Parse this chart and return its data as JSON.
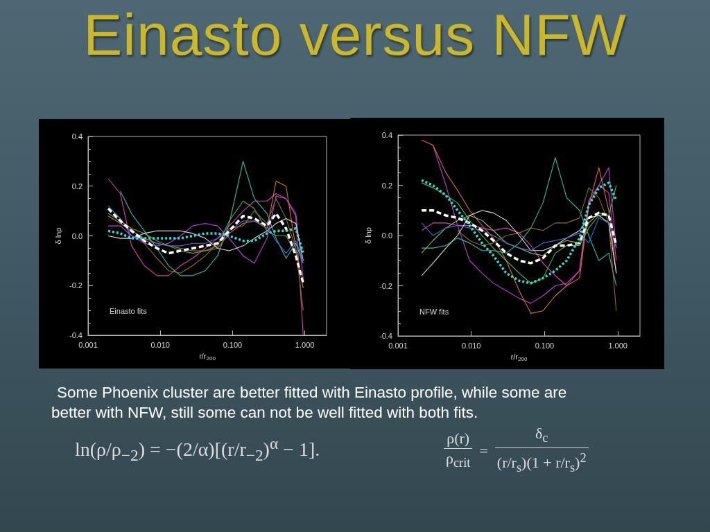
{
  "chart_data": [
    {
      "type": "line",
      "title": "Einasto versus NFW",
      "xlabel": "r/r$_{200}$",
      "ylabel": "δ lnρ",
      "annotations": [
        "Einasto fits",
        "Some Phoenix cluster are better fitted with Einasto profile, while some are better with NFW, still some can not be well fitted with both fits.",
        "ln(ρ/ρ$_{−2}$) = −(2/α)[(r/r$_{−2}$)$^{α}$ − 1]."
      ],
      "log": "x",
      "xlim": [
        0.001,
        2
      ],
      "xticks": [
        0.001,
        {
          "value": 0.01,
          "label": "0.010"
        },
        {
          "value": 0.1,
          "label": "0.100"
        },
        {
          "value": 1,
          "label": "1.000"
        }
      ],
      "ylim": [
        -0.4,
        0.4
      ],
      "yticks": [
        -0.4,
        -0.2,
        {
          "value": 0,
          "label": "0.0"
        },
        0.2,
        0.4
      ],
      "line_style": "solid",
      "x": [
        0.0019,
        0.0028,
        0.004,
        0.006,
        0.009,
        0.013,
        0.019,
        0.028,
        0.042,
        0.062,
        0.09,
        0.14,
        0.2,
        0.3,
        0.4,
        0.55,
        0.75,
        0.95
      ],
      "series": [
        {
          "color": "#e040b0",
          "values": [
            0.23,
            0.17,
            -0.04,
            -0.12,
            -0.16,
            -0.16,
            -0.12,
            -0.09,
            -0.05,
            -0.01,
            0.04,
            0.1,
            0.14,
            0.14,
            0.17,
            0.15,
            0.08,
            -0.4
          ]
        },
        {
          "color": "#c040e0",
          "values": [
            0.04,
            0.04,
            0.0,
            -0.03,
            -0.04,
            -0.03,
            0.0,
            0.04,
            0.05,
            0.04,
            -0.01,
            -0.08,
            -0.11,
            -0.01,
            0.16,
            0.15,
            0.09,
            -0.17
          ]
        },
        {
          "color": "#30c0b0",
          "values": [
            null,
            0.18,
            0.09,
            0.02,
            -0.05,
            -0.12,
            -0.16,
            -0.16,
            -0.14,
            -0.08,
            0.05,
            0.3,
            0.15,
            0.09,
            -0.01,
            -0.09,
            -0.03,
            -0.11
          ]
        },
        {
          "color": "#e07030",
          "values": [
            0.08,
            0.05,
            0.02,
            -0.01,
            -0.03,
            -0.04,
            -0.05,
            -0.06,
            -0.06,
            -0.05,
            0.01,
            0.05,
            0.06,
            0.03,
            0.22,
            0.2,
            -0.05,
            -0.21
          ]
        },
        {
          "color": "#50b040",
          "values": [
            0.09,
            0.06,
            0.03,
            0.01,
            -0.02,
            -0.04,
            -0.06,
            -0.07,
            -0.06,
            -0.04,
            0.06,
            0.14,
            0.11,
            0.02,
            0.0,
            0.0,
            -0.07,
            -0.05
          ]
        },
        {
          "color": "#8a7030",
          "values": [
            null,
            0.06,
            0.03,
            -0.03,
            -0.09,
            -0.14,
            -0.15,
            -0.12,
            -0.08,
            -0.03,
            0.03,
            0.04,
            0.1,
            0.05,
            0.15,
            0.07,
            -0.05,
            -0.3
          ]
        },
        {
          "color": "#e0e0e0",
          "values": [
            0.0,
            -0.01,
            -0.01,
            0.01,
            0.02,
            0.02,
            0.02,
            0.01,
            -0.01,
            -0.05,
            -0.06,
            -0.04,
            -0.01,
            0.02,
            0.05,
            0.07,
            0.05,
            -0.1
          ]
        },
        {
          "color": "#4a70e0",
          "values": [
            0.12,
            0.07,
            0.0,
            -0.02,
            -0.03,
            -0.04,
            -0.04,
            -0.03,
            -0.03,
            -0.01,
            0.02,
            0.06,
            0.06,
            0.04,
            -0.02,
            -0.07,
            -0.02,
            -0.1
          ]
        },
        {
          "color": "#ffffff",
          "line_style": "dashed",
          "values": [
            0.11,
            0.06,
            0.02,
            -0.02,
            -0.05,
            -0.07,
            -0.06,
            -0.05,
            -0.04,
            -0.03,
            0.02,
            0.08,
            0.07,
            0.04,
            0.09,
            0.03,
            -0.08,
            -0.19
          ]
        },
        {
          "color": "#30e0d0",
          "line_style": "dotted",
          "values": [
            0.02,
            0.01,
            -0.01,
            -0.01,
            -0.01,
            -0.01,
            -0.01,
            0.0,
            0.01,
            0.01,
            0.0,
            -0.02,
            -0.02,
            0.01,
            0.02,
            0.02,
            0.03,
            -0.07
          ]
        }
      ]
    },
    {
      "type": "line",
      "xlabel": "r/r$_{200}$",
      "ylabel": "δ lnρ",
      "annotations": [
        "NFW fits",
        "ρ(r)",
        "ρ$_{crit}$",
        "=",
        "δ$_{c}$",
        "(r/r$_{s}$)(1 + r/r$_{s}$)$^{2}$"
      ],
      "log": "x",
      "xlim": [
        0.001,
        2
      ],
      "xticks": [
        0.001,
        {
          "value": 0.01,
          "label": "0.010"
        },
        {
          "value": 0.1,
          "label": "0.100"
        },
        {
          "value": 1,
          "label": "1.000"
        }
      ],
      "ylim": [
        -0.4,
        0.4
      ],
      "yticks": [
        -0.4,
        -0.2,
        {
          "value": 0,
          "label": "0.0"
        },
        0.2,
        0.4
      ],
      "line_style": "solid",
      "x": [
        0.0021,
        0.003,
        0.0045,
        0.0065,
        0.0095,
        0.014,
        0.02,
        0.03,
        0.045,
        0.065,
        0.095,
        0.14,
        0.2,
        0.3,
        0.4,
        0.55,
        0.75,
        0.95
      ],
      "series": [
        {
          "color": "#c040d0",
          "values": [
            null,
            0.36,
            0.2,
            0.04,
            -0.1,
            -0.15,
            -0.19,
            -0.22,
            -0.25,
            -0.27,
            -0.24,
            -0.2,
            -0.19,
            -0.14,
            0.12,
            0.2,
            0.27,
            -0.05
          ]
        },
        {
          "color": "#e040c0",
          "values": [
            0.02,
            0.05,
            0.05,
            0.04,
            0.04,
            0.03,
            0.02,
            0.03,
            0.01,
            -0.04,
            -0.11,
            -0.16,
            -0.2,
            -0.14,
            0.14,
            0.2,
            0.17,
            -0.1
          ]
        },
        {
          "color": "#e07040",
          "values": [
            0.38,
            0.36,
            0.25,
            0.18,
            0.1,
            0.04,
            -0.01,
            -0.1,
            -0.22,
            -0.31,
            -0.3,
            -0.24,
            -0.2,
            -0.17,
            0.12,
            0.27,
            0.1,
            -0.15
          ]
        },
        {
          "color": "#30c0b0",
          "values": [
            -0.05,
            -0.05,
            -0.04,
            -0.01,
            -0.03,
            -0.06,
            -0.06,
            -0.07,
            -0.03,
            0.03,
            0.13,
            0.31,
            0.15,
            0.1,
            0.0,
            -0.1,
            -0.07,
            -0.2
          ]
        },
        {
          "color": "#40c040",
          "values": [
            0.21,
            0.19,
            0.16,
            0.13,
            0.06,
            0.0,
            -0.05,
            -0.1,
            -0.15,
            -0.19,
            -0.17,
            -0.07,
            -0.04,
            -0.04,
            0.03,
            0.08,
            0.08,
            0.2
          ]
        },
        {
          "color": "#90c050",
          "values": [
            -0.07,
            -0.02,
            0.03,
            0.06,
            0.08,
            0.06,
            0.02,
            -0.03,
            -0.05,
            -0.07,
            -0.08,
            -0.04,
            -0.02,
            -0.03,
            0.05,
            0.09,
            0.08,
            null
          ]
        },
        {
          "color": "#8a7030",
          "values": [
            null,
            null,
            null,
            0.02,
            -0.02,
            -0.04,
            -0.03,
            0.0,
            0.01,
            0.03,
            0.02,
            0.05,
            0.05,
            0.07,
            0.19,
            0.15,
            0.05,
            -0.3
          ]
        },
        {
          "color": "#e0e0e0",
          "values": [
            -0.16,
            -0.11,
            -0.05,
            0.0,
            0.08,
            0.1,
            0.09,
            0.06,
            0.0,
            -0.06,
            -0.06,
            -0.04,
            -0.01,
            0.02,
            0.07,
            0.08,
            0.05,
            -0.15
          ]
        },
        {
          "color": "#4a70e0",
          "values": [
            0.05,
            0.0,
            0.03,
            0.04,
            0.03,
            0.02,
            0.0,
            -0.03,
            -0.05,
            -0.06,
            -0.03,
            -0.02,
            -0.01,
            0.01,
            -0.03,
            0.07,
            0.05,
            -0.05
          ]
        },
        {
          "color": "#ffffff",
          "line_style": "dashed",
          "values": [
            0.1,
            0.1,
            0.08,
            0.07,
            0.05,
            0.02,
            -0.02,
            -0.07,
            -0.1,
            -0.11,
            -0.09,
            -0.04,
            -0.04,
            -0.03,
            0.07,
            0.09,
            0.08,
            -0.04
          ]
        },
        {
          "color": "#30e0d0",
          "line_style": "dotted",
          "values": [
            0.22,
            0.2,
            0.16,
            0.1,
            0.04,
            -0.03,
            -0.08,
            -0.15,
            -0.18,
            -0.19,
            -0.17,
            -0.14,
            -0.1,
            -0.01,
            0.12,
            0.19,
            0.21,
            0.14
          ]
        }
      ]
    }
  ]
}
